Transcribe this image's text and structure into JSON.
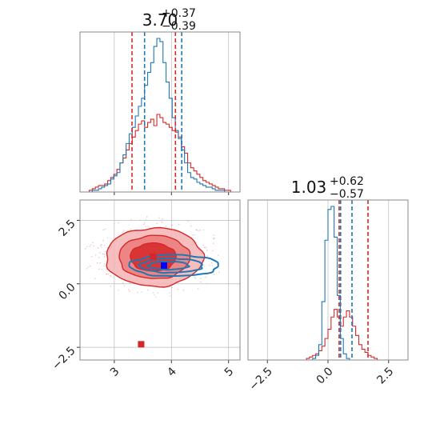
{
  "chart_data": {
    "type": "corner",
    "colors": {
      "red": "#d62728",
      "blue": "#1f77b4",
      "grid": "#bbbbbb",
      "frame": "#888888"
    },
    "grid": true,
    "parameters": [
      {
        "median": "3.70",
        "plus": "+0.37",
        "minus": "−0.39"
      },
      {
        "median": "1.03",
        "plus": "+0.62",
        "minus": "−0.57"
      }
    ],
    "x_axis_p0": {
      "range": [
        2.4,
        5.2
      ],
      "ticks": [
        3,
        4,
        5
      ],
      "tick_labels": [
        "3",
        "4",
        "5"
      ]
    },
    "x_axis_p1": {
      "range": [
        -3.3,
        3.3
      ],
      "ticks": [
        -2.5,
        0.0,
        2.5
      ],
      "tick_labels": [
        "−2.5",
        "0.0",
        "2.5"
      ]
    },
    "y_axis_p1": {
      "range": [
        -3.0,
        3.3
      ],
      "ticks": [
        -2.5,
        0.0,
        2.5
      ],
      "tick_labels": [
        "−2.5",
        "0.0",
        "2.5"
      ]
    },
    "quantile_lines": {
      "p0": {
        "red": [
          3.31,
          4.07
        ],
        "blue": [
          3.53,
          4.18
        ]
      },
      "p1": {
        "red": [
          0.46,
          1.65
        ],
        "blue": [
          0.52,
          0.99
        ]
      }
    },
    "markers": [
      {
        "series": "red",
        "x": 3.68,
        "y": 1.07
      },
      {
        "series": "red",
        "x": 3.47,
        "y": -2.38
      },
      {
        "series": "blue",
        "x": 3.87,
        "y": 0.72
      }
    ],
    "hist_p0": {
      "bins_start": 2.4,
      "bin_width": 0.0538,
      "red": [
        0,
        0,
        0,
        1,
        2,
        3,
        4,
        4,
        5,
        7,
        9,
        11,
        14,
        18,
        21,
        26,
        30,
        34,
        38,
        42,
        44,
        40,
        43,
        45,
        41,
        48,
        46,
        43,
        42,
        40,
        38,
        37,
        34,
        28,
        24,
        18,
        15,
        13,
        11,
        9,
        7,
        6,
        5,
        4,
        3,
        2,
        2,
        1,
        1,
        0,
        0,
        0
      ],
      "blue": [
        0,
        0,
        0,
        0,
        1,
        1,
        2,
        3,
        4,
        5,
        8,
        10,
        12,
        18,
        23,
        30,
        36,
        40,
        47,
        53,
        58,
        66,
        74,
        80,
        90,
        95,
        93,
        80,
        68,
        58,
        46,
        38,
        33,
        26,
        18,
        12,
        9,
        8,
        6,
        5,
        4,
        3,
        3,
        2,
        1,
        1,
        1,
        0,
        0,
        0,
        0,
        0
      ]
    },
    "hist_p1": {
      "bins_start": -3.3,
      "bin_width": 0.1269,
      "red": [
        0,
        0,
        0,
        0,
        0,
        0,
        0,
        0,
        0,
        0,
        0,
        0,
        0,
        0,
        0,
        0,
        0,
        0,
        0,
        1,
        2,
        3,
        4,
        6,
        9,
        14,
        20,
        28,
        33,
        28,
        22,
        28,
        32,
        28,
        22,
        16,
        10,
        7,
        5,
        3,
        2,
        1,
        0,
        0,
        0,
        0,
        0,
        0,
        0,
        0,
        0,
        0
      ],
      "blue": [
        0,
        0,
        0,
        0,
        0,
        0,
        0,
        0,
        0,
        0,
        0,
        0,
        0,
        0,
        0,
        0,
        0,
        0,
        0,
        0,
        0,
        1,
        3,
        10,
        38,
        78,
        98,
        100,
        80,
        42,
        14,
        4,
        1,
        0,
        0,
        0,
        0,
        0,
        0,
        0,
        0,
        0,
        0,
        0,
        0,
        0,
        0,
        0,
        0,
        0,
        0,
        0
      ]
    },
    "contours_red": [
      {
        "cx": 3.7,
        "cy": 1.05,
        "rx": 0.85,
        "ry": 1.15,
        "level": 3
      },
      {
        "cx": 3.7,
        "cy": 1.05,
        "rx": 0.62,
        "ry": 0.85,
        "level": 2
      },
      {
        "cx": 3.68,
        "cy": 1.05,
        "rx": 0.4,
        "ry": 0.55,
        "level": 1
      }
    ],
    "contours_blue": [
      {
        "cx": 4.05,
        "cy": 0.72,
        "rx": 0.78,
        "ry": 0.42,
        "level": 3
      },
      {
        "cx": 4.0,
        "cy": 0.72,
        "rx": 0.55,
        "ry": 0.28,
        "level": 2
      },
      {
        "cx": 3.95,
        "cy": 0.72,
        "rx": 0.35,
        "ry": 0.16,
        "level": 1
      }
    ]
  }
}
